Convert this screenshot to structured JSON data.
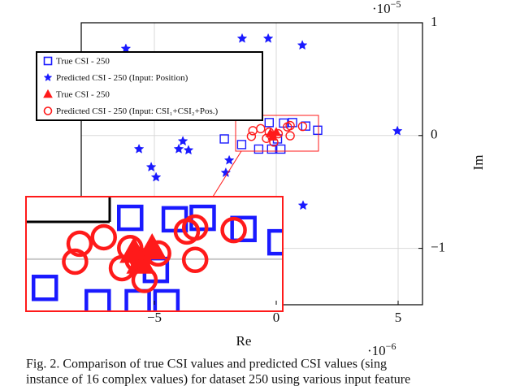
{
  "chart_data": {
    "type": "scatter",
    "xlabel": "Re",
    "ylabel": "Im",
    "x_multiplier": {
      "base": "·10",
      "exponent": "−6"
    },
    "y_multiplier": {
      "base": "·10",
      "exponent": "−5"
    },
    "xlim": [
      -8,
      6
    ],
    "ylim": [
      -1.5,
      1
    ],
    "xticks": [
      {
        "value": -5,
        "label": "−5"
      },
      0,
      5
    ],
    "yticks": [
      {
        "value": -1,
        "label": "−1"
      },
      0,
      1
    ],
    "grid": true,
    "legend": "upper left",
    "series": [
      {
        "name": "True CSI - 250",
        "color": "#1a1aff",
        "marker": "square",
        "x": [
          -2.13,
          -1.42,
          -0.72,
          -0.29,
          -0.19,
          0.19,
          0.3,
          0.67,
          1.21,
          1.7,
          0.05
        ],
        "values": [
          -0.03,
          -0.08,
          -0.12,
          0.115,
          -0.12,
          -0.12,
          0.111,
          0.115,
          0.084,
          0.047,
          -0.03
        ]
      },
      {
        "name": "Predicted CSI - 250 (Input: Position)",
        "color": "#1a1aff",
        "marker": "star",
        "x": [
          -6.17,
          -1.4,
          -0.33,
          1.07,
          4.97,
          -3.83,
          -5.63,
          -4.0,
          -3.6,
          -5.13,
          -4.93,
          -1.93,
          -2.07,
          1.1
        ],
        "values": [
          0.77,
          0.86,
          0.86,
          0.8,
          0.04,
          -0.05,
          -0.12,
          -0.12,
          -0.13,
          -0.28,
          -0.37,
          -0.22,
          -0.33,
          -0.62
        ]
      },
      {
        "name": "True CSI - 250",
        "color": "#ff1a1a",
        "marker": "triangle",
        "x": [
          -0.24,
          -0.15,
          0.0
        ],
        "values": [
          0.02,
          -0.01,
          0.03
        ]
      },
      {
        "name": "Predicted CSI - 250 (Input: CSI₁+CSI₂+Pos.)",
        "color": "#ff1a1a",
        "marker": "circle",
        "x": [
          -1.02,
          -0.96,
          -0.64,
          -0.29,
          -0.19,
          -0.1,
          0.08,
          0.46,
          0.57,
          0.57,
          1.08,
          -0.4
        ],
        "values": [
          -0.007,
          0.043,
          0.061,
          0.031,
          -0.002,
          -0.058,
          0.016,
          0.077,
          -0.002,
          0.088,
          0.081,
          -0.025
        ]
      }
    ],
    "caption": [
      "Fig. 2.   Comparison of true CSI values and predicted CSI values (sing",
      "instance of 16 complex values) for dataset 250 using various input feature"
    ]
  }
}
